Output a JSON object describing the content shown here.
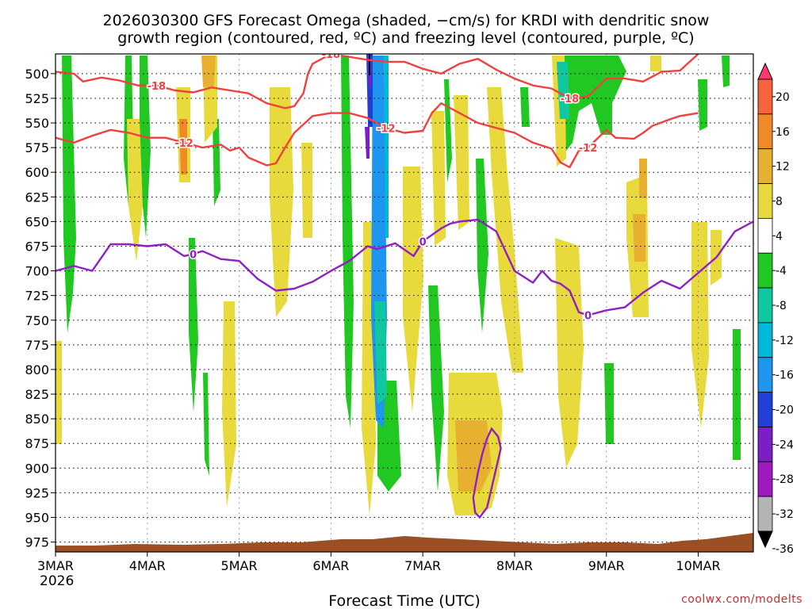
{
  "chart_data": {
    "type": "heatmap",
    "title_line1": "2026030300 GFS Forecast Omega (shaded, −cm/s) for KRDI with dendritic snow",
    "title_line2": "growth region (contoured, red, ºC) and freezing level (contoured, purple, ºC)",
    "xlabel": "Forecast Time (UTC)",
    "ylabel": "",
    "credit": "coolwx.com/modelts",
    "x_ticks": [
      "3MAR",
      "4MAR",
      "5MAR",
      "6MAR",
      "7MAR",
      "8MAR",
      "9MAR",
      "10MAR"
    ],
    "x_year": "2026",
    "x_range_days": [
      0,
      7.6
    ],
    "y_ticks": [
      500,
      525,
      550,
      575,
      600,
      625,
      650,
      675,
      700,
      725,
      750,
      775,
      800,
      825,
      850,
      875,
      900,
      925,
      950,
      975
    ],
    "y_range_hpa": [
      480,
      985
    ],
    "colorbar": {
      "labels": [
        "20",
        "16",
        "12",
        "8",
        "4",
        "-4",
        "-8",
        "-12",
        "-16",
        "-20",
        "-24",
        "-28",
        "-32",
        "-36"
      ],
      "colors": [
        "#ff3a72",
        "#f7643c",
        "#f08a28",
        "#e8b030",
        "#e8da3c",
        "#ffffff",
        "#22c822",
        "#10c8a0",
        "#00b8d8",
        "#1e96f0",
        "#2240d8",
        "#7a1ec8",
        "#a018c0",
        "#b4b4b4",
        "#000000"
      ]
    },
    "contours": [
      {
        "name": "-18 C",
        "color": "#f04040",
        "label": "-18",
        "points": [
          [
            0,
            498
          ],
          [
            0.2,
            500
          ],
          [
            0.3,
            508
          ],
          [
            0.5,
            504
          ],
          [
            0.7,
            507
          ],
          [
            0.9,
            512
          ],
          [
            1.1,
            512
          ],
          [
            1.3,
            517
          ],
          [
            1.5,
            519
          ],
          [
            1.7,
            514
          ],
          [
            1.9,
            517
          ],
          [
            2.1,
            520
          ],
          [
            2.3,
            530
          ],
          [
            2.5,
            535
          ],
          [
            2.6,
            533
          ],
          [
            2.7,
            520
          ],
          [
            2.75,
            500
          ],
          [
            2.8,
            490
          ],
          [
            3.0,
            480
          ],
          [
            3.4,
            486
          ],
          [
            3.6,
            488
          ],
          [
            3.8,
            488
          ],
          [
            4.0,
            495
          ],
          [
            4.2,
            500
          ],
          [
            4.4,
            490
          ],
          [
            4.6,
            485
          ],
          [
            4.8,
            496
          ],
          [
            5.0,
            505
          ],
          [
            5.2,
            512
          ],
          [
            5.4,
            515
          ],
          [
            5.6,
            525
          ],
          [
            5.8,
            523
          ],
          [
            6.0,
            505
          ],
          [
            6.2,
            505
          ],
          [
            6.4,
            508
          ],
          [
            6.6,
            498
          ],
          [
            6.8,
            497
          ],
          [
            7.0,
            480
          ]
        ]
      },
      {
        "name": "-12 C",
        "color": "#f04040",
        "label": "-12",
        "points": [
          [
            0,
            565
          ],
          [
            0.2,
            570
          ],
          [
            0.4,
            563
          ],
          [
            0.6,
            557
          ],
          [
            0.8,
            560
          ],
          [
            1.0,
            565
          ],
          [
            1.2,
            565
          ],
          [
            1.4,
            570
          ],
          [
            1.6,
            575
          ],
          [
            1.8,
            572
          ],
          [
            1.9,
            578
          ],
          [
            2.0,
            575
          ],
          [
            2.1,
            585
          ],
          [
            2.3,
            593
          ],
          [
            2.4,
            591
          ],
          [
            2.5,
            575
          ],
          [
            2.6,
            560
          ],
          [
            2.8,
            543
          ],
          [
            3.0,
            540
          ],
          [
            3.2,
            540
          ],
          [
            3.4,
            545
          ],
          [
            3.5,
            550
          ],
          [
            3.6,
            555
          ],
          [
            3.8,
            560
          ],
          [
            4.0,
            558
          ],
          [
            4.1,
            540
          ],
          [
            4.2,
            530
          ],
          [
            4.4,
            540
          ],
          [
            4.6,
            550
          ],
          [
            4.8,
            555
          ],
          [
            5.0,
            560
          ],
          [
            5.2,
            570
          ],
          [
            5.4,
            576
          ],
          [
            5.5,
            590
          ],
          [
            5.6,
            595
          ],
          [
            5.7,
            578
          ],
          [
            5.8,
            575
          ],
          [
            6.0,
            557
          ],
          [
            6.1,
            565
          ],
          [
            6.3,
            566
          ],
          [
            6.4,
            560
          ],
          [
            6.5,
            553
          ],
          [
            6.7,
            546
          ],
          [
            6.8,
            543
          ],
          [
            7.0,
            540
          ]
        ]
      },
      {
        "name": "0 C freezing level",
        "color": "#9020c0",
        "label": "0",
        "points": [
          [
            0,
            700
          ],
          [
            0.2,
            695
          ],
          [
            0.4,
            700
          ],
          [
            0.6,
            673
          ],
          [
            0.8,
            673
          ],
          [
            1.0,
            675
          ],
          [
            1.2,
            673
          ],
          [
            1.4,
            685
          ],
          [
            1.5,
            683
          ],
          [
            1.6,
            680
          ],
          [
            1.8,
            688
          ],
          [
            2.0,
            690
          ],
          [
            2.2,
            708
          ],
          [
            2.4,
            720
          ],
          [
            2.6,
            718
          ],
          [
            2.8,
            711
          ],
          [
            3.0,
            700
          ],
          [
            3.2,
            690
          ],
          [
            3.4,
            675
          ],
          [
            3.5,
            678
          ],
          [
            3.7,
            672
          ],
          [
            3.9,
            685
          ],
          [
            4.0,
            670
          ],
          [
            4.2,
            657
          ],
          [
            4.3,
            652
          ],
          [
            4.4,
            650
          ],
          [
            4.6,
            648
          ],
          [
            4.8,
            660
          ],
          [
            4.9,
            680
          ],
          [
            5.0,
            700
          ],
          [
            5.2,
            712
          ],
          [
            5.3,
            700
          ],
          [
            5.4,
            710
          ],
          [
            5.5,
            713
          ],
          [
            5.6,
            720
          ],
          [
            5.7,
            742
          ],
          [
            5.8,
            745
          ],
          [
            6.0,
            740
          ],
          [
            6.2,
            737
          ],
          [
            6.4,
            722
          ],
          [
            6.6,
            710
          ],
          [
            6.8,
            718
          ],
          [
            7.0,
            702
          ],
          [
            7.2,
            686
          ],
          [
            7.4,
            660
          ],
          [
            7.6,
            650
          ]
        ]
      }
    ]
  }
}
